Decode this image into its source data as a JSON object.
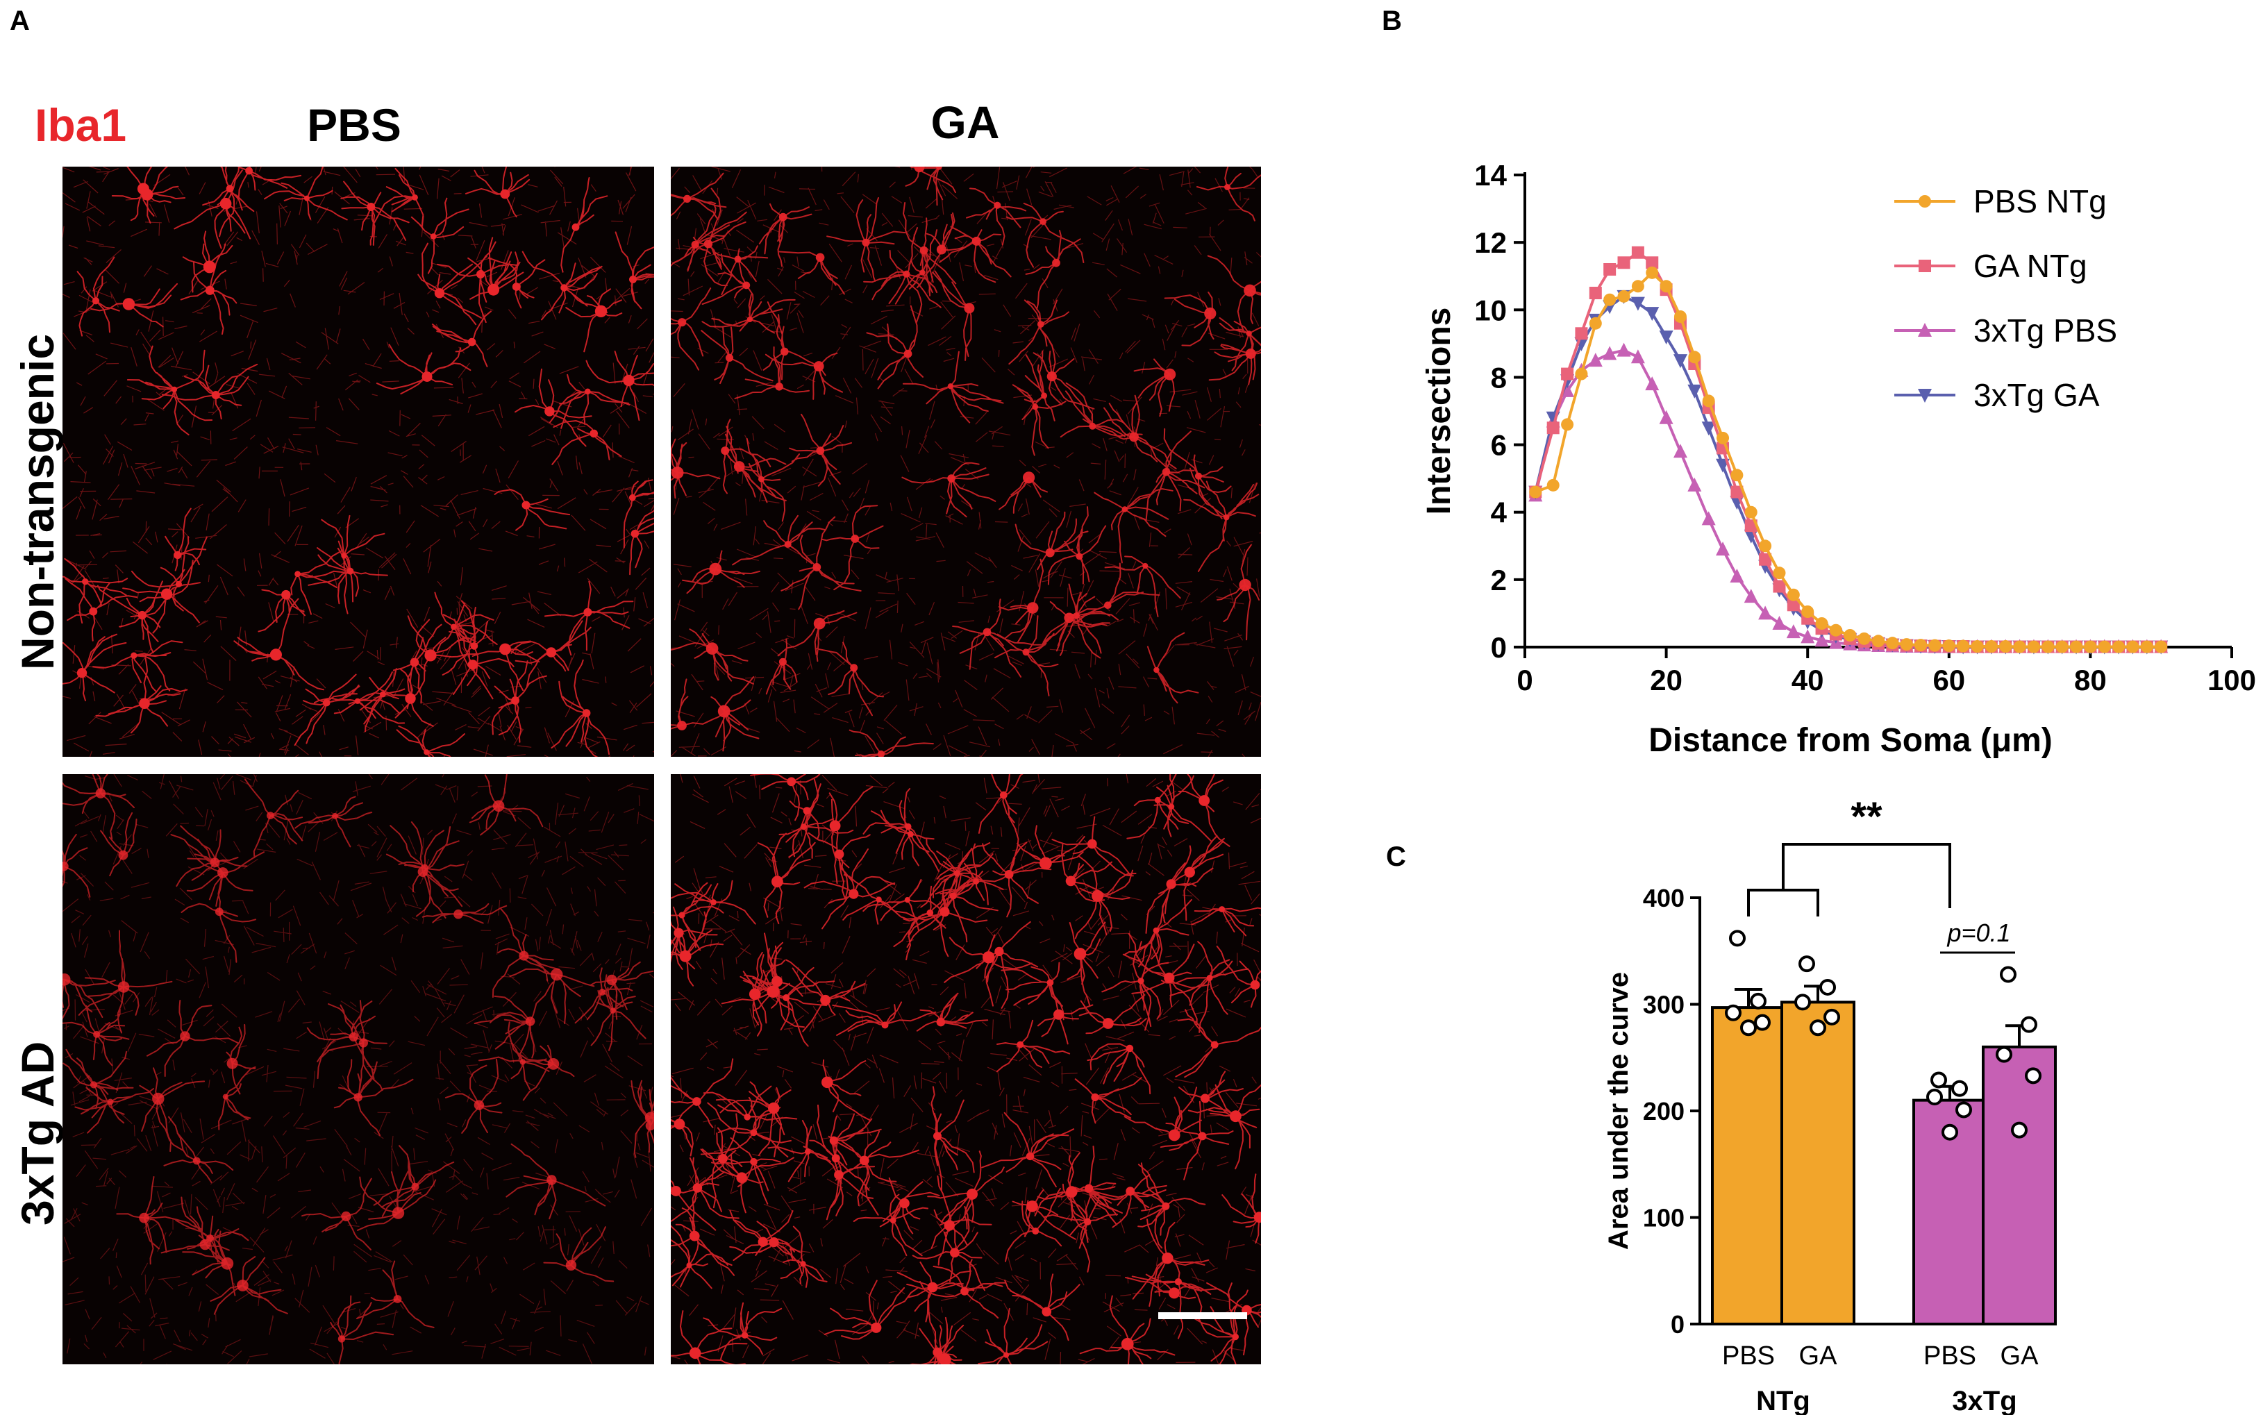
{
  "panels": {
    "a": "A",
    "b": "B",
    "c": "C"
  },
  "panel_a": {
    "stain_label": "Iba1",
    "stain_color": "#e8262b",
    "columns": [
      "PBS",
      "GA"
    ],
    "rows": [
      "Non-transgenic",
      "3xTg AD"
    ]
  },
  "chart_data": [
    {
      "type": "line",
      "xlabel": "Distance from Soma (μm)",
      "ylabel": "Intersections",
      "xlim": [
        0,
        100
      ],
      "ylim": [
        0,
        14
      ],
      "xticks": [
        0,
        20,
        40,
        60,
        80,
        100
      ],
      "yticks": [
        0,
        2,
        4,
        6,
        8,
        10,
        12,
        14
      ],
      "legend_position": "top-right",
      "x": [
        1.5,
        4,
        6,
        8,
        10,
        12,
        14,
        16,
        18,
        20,
        22,
        24,
        26,
        28,
        30,
        32,
        34,
        36,
        38,
        40,
        42,
        44,
        46,
        48,
        50,
        52,
        54,
        56,
        58,
        60,
        62,
        64,
        66,
        68,
        70,
        72,
        74,
        76,
        78,
        80,
        82,
        84,
        86,
        88,
        90
      ],
      "series": [
        {
          "name": "PBS NTg",
          "color": "#f2a52b",
          "marker": "circle",
          "values": [
            4.6,
            4.8,
            6.6,
            8.1,
            9.6,
            10.3,
            10.4,
            10.7,
            11.1,
            10.7,
            9.8,
            8.6,
            7.3,
            6.2,
            5.1,
            4.0,
            3.0,
            2.2,
            1.55,
            1.05,
            0.7,
            0.5,
            0.35,
            0.25,
            0.18,
            0.12,
            0.08,
            0.06,
            0.05,
            0.04,
            0.03,
            0.02,
            0.02,
            0.02,
            0.01,
            0.01,
            0.01,
            0.01,
            0.01,
            0.01,
            0.01,
            0.01,
            0.01,
            0.01,
            0.01
          ]
        },
        {
          "name": "GA NTg",
          "color": "#e9637a",
          "marker": "square",
          "values": [
            4.6,
            6.5,
            8.1,
            9.3,
            10.5,
            11.2,
            11.4,
            11.7,
            11.4,
            10.6,
            9.6,
            8.4,
            7.1,
            5.9,
            4.6,
            3.6,
            2.6,
            1.8,
            1.25,
            0.85,
            0.55,
            0.38,
            0.25,
            0.17,
            0.11,
            0.07,
            0.05,
            0.04,
            0.03,
            0.02,
            0.02,
            0.01,
            0.01,
            0.01,
            0.01,
            0.01,
            0.01,
            0.01,
            0.01,
            0.01,
            0.01,
            0.01,
            0.01,
            0.01,
            0.01
          ]
        },
        {
          "name": "3xTg PBS",
          "color": "#c660b4",
          "marker": "triangle-up",
          "values": [
            4.5,
            6.7,
            7.6,
            8.2,
            8.5,
            8.7,
            8.8,
            8.6,
            7.8,
            6.8,
            5.8,
            4.8,
            3.8,
            2.9,
            2.1,
            1.5,
            1.0,
            0.7,
            0.45,
            0.3,
            0.2,
            0.13,
            0.09,
            0.06,
            0.04,
            0.03,
            0.02,
            0.02,
            0.01,
            0.01,
            0.01,
            0.01,
            0.01,
            0.01,
            0.01,
            0.01,
            0.01,
            0.01,
            0.01,
            0.01,
            0.01,
            0.01,
            0.01,
            0.01,
            0.01
          ]
        },
        {
          "name": "3xTg GA",
          "color": "#5a5fae",
          "marker": "triangle-down",
          "values": [
            4.6,
            6.8,
            7.9,
            9.0,
            9.7,
            10.1,
            10.4,
            10.2,
            9.9,
            9.2,
            8.5,
            7.6,
            6.5,
            5.4,
            4.3,
            3.3,
            2.4,
            1.7,
            1.15,
            0.75,
            0.5,
            0.33,
            0.22,
            0.15,
            0.1,
            0.07,
            0.05,
            0.03,
            0.02,
            0.02,
            0.01,
            0.01,
            0.01,
            0.01,
            0.01,
            0.01,
            0.01,
            0.01,
            0.01,
            0.01,
            0.01,
            0.01,
            0.01,
            0.01,
            0.01
          ]
        }
      ]
    },
    {
      "type": "bar",
      "ylabel": "Area under the curve",
      "ylim": [
        0,
        400
      ],
      "yticks": [
        0,
        100,
        200,
        300,
        400
      ],
      "categories": [
        "PBS",
        "GA",
        "PBS",
        "GA"
      ],
      "groups": [
        "NTg",
        "3xTg"
      ],
      "values": [
        297,
        302,
        210,
        260
      ],
      "sem": [
        17,
        15,
        13,
        20
      ],
      "colors": [
        "#f2a52b",
        "#f2a52b",
        "#c660b4",
        "#c660b4"
      ],
      "points": [
        [
          362,
          303,
          292,
          283,
          278
        ],
        [
          338,
          316,
          302,
          288,
          278
        ],
        [
          229,
          221,
          213,
          201,
          180
        ],
        [
          328,
          281,
          253,
          233,
          182
        ]
      ],
      "annotations": {
        "significance": "**",
        "p_value": "p=0.1"
      }
    }
  ]
}
